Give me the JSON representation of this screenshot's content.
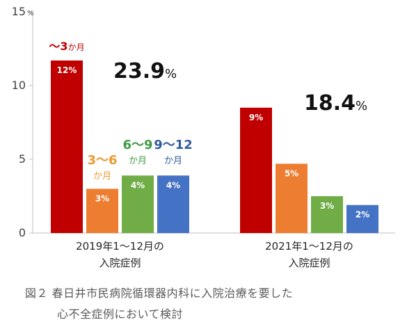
{
  "chart_data": {
    "type": "bar",
    "ylim": [
      0,
      15
    ],
    "yticks": [
      {
        "value": 0,
        "label": "0"
      },
      {
        "value": 5,
        "label": "5"
      },
      {
        "value": 10,
        "label": "10"
      },
      {
        "value": 15,
        "label": "15"
      }
    ],
    "y_unit": "%",
    "colors": [
      "#C00000",
      "#ED7D31",
      "#70AD47",
      "#4472C4"
    ],
    "category_label_colors": [
      "#C00000",
      "#ED9A2F",
      "#3E9B45",
      "#2E5C9E"
    ],
    "category_labels": [
      {
        "line1": "〜3",
        "line1_suffix": "か月",
        "line2": ""
      },
      {
        "line1": "3〜6",
        "line1_suffix": "",
        "line2": "か月"
      },
      {
        "line1": "6〜9",
        "line1_suffix": "",
        "line2": "か月"
      },
      {
        "line1": "9〜12",
        "line1_suffix": "",
        "line2": "か月"
      }
    ],
    "groups": [
      {
        "label_lines": [
          "2019年1〜12月の",
          "入院症例"
        ],
        "total": "23.9",
        "total_unit": "%",
        "values": [
          11.7,
          3.0,
          3.9,
          3.9
        ],
        "value_labels": [
          "12%",
          "3%",
          "4%",
          "4%"
        ]
      },
      {
        "label_lines": [
          "2021年1〜12月の",
          "入院症例"
        ],
        "total": "18.4",
        "total_unit": "%",
        "values": [
          8.5,
          4.7,
          2.5,
          1.9
        ],
        "value_labels": [
          "9%",
          "5%",
          "3%",
          "2%"
        ]
      }
    ]
  },
  "caption": {
    "line1": "図２ 春日井市民病院循環器内科に入院治療を要した",
    "line2": "心不全症例において検討"
  }
}
